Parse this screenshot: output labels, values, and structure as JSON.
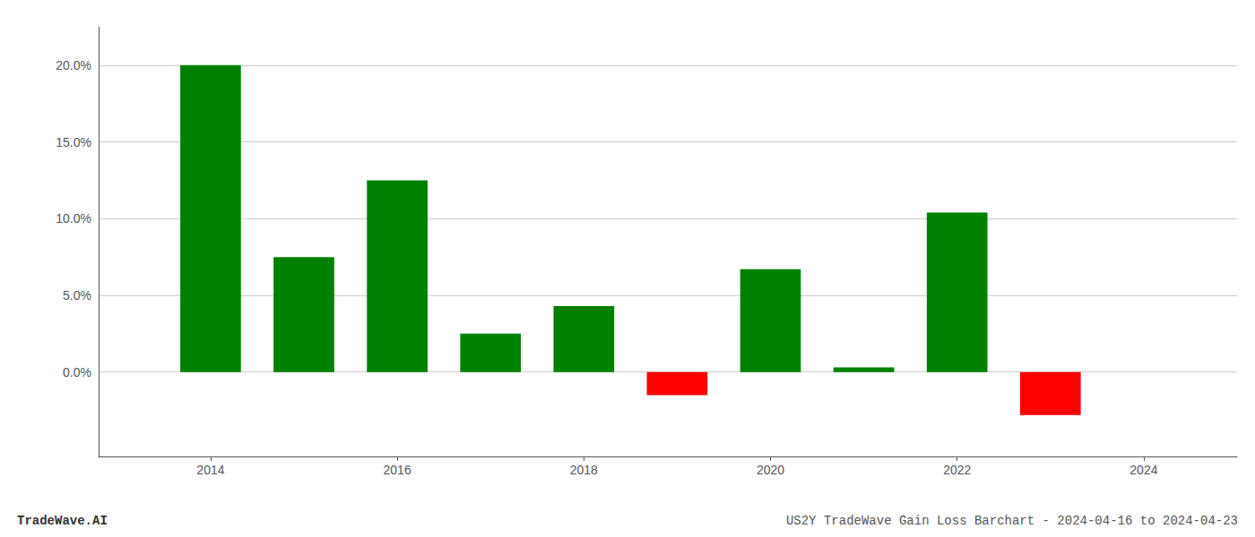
{
  "chart_data": {
    "type": "bar",
    "title": "US2Y TradeWave Gain Loss Barchart - 2024-04-16 to 2024-04-23",
    "annotations": [
      "TradeWave.AI"
    ],
    "x": [
      2014,
      2015,
      2016,
      2017,
      2018,
      2019,
      2020,
      2021,
      2022,
      2023
    ],
    "values": [
      0.2,
      0.075,
      0.125,
      0.025,
      0.043,
      -0.015,
      0.067,
      0.003,
      0.104,
      -0.028
    ],
    "colors": [
      "#008000",
      "#008000",
      "#008000",
      "#008000",
      "#008000",
      "#ff0000",
      "#008000",
      "#008000",
      "#008000",
      "#ff0000"
    ],
    "xlim": [
      2012.8,
      2025.0
    ],
    "xticks": [
      2014,
      2016,
      2018,
      2020,
      2022,
      2024
    ],
    "ylim": [
      -0.055,
      0.225
    ],
    "yticks": [
      {
        "value": 0.0,
        "label": "0.0%"
      },
      {
        "value": 0.05,
        "label": "5.0%"
      },
      {
        "value": 0.1,
        "label": "10.0%"
      },
      {
        "value": 0.15,
        "label": "15.0%"
      },
      {
        "value": 0.2,
        "label": "20.0%"
      }
    ],
    "grid": true
  }
}
